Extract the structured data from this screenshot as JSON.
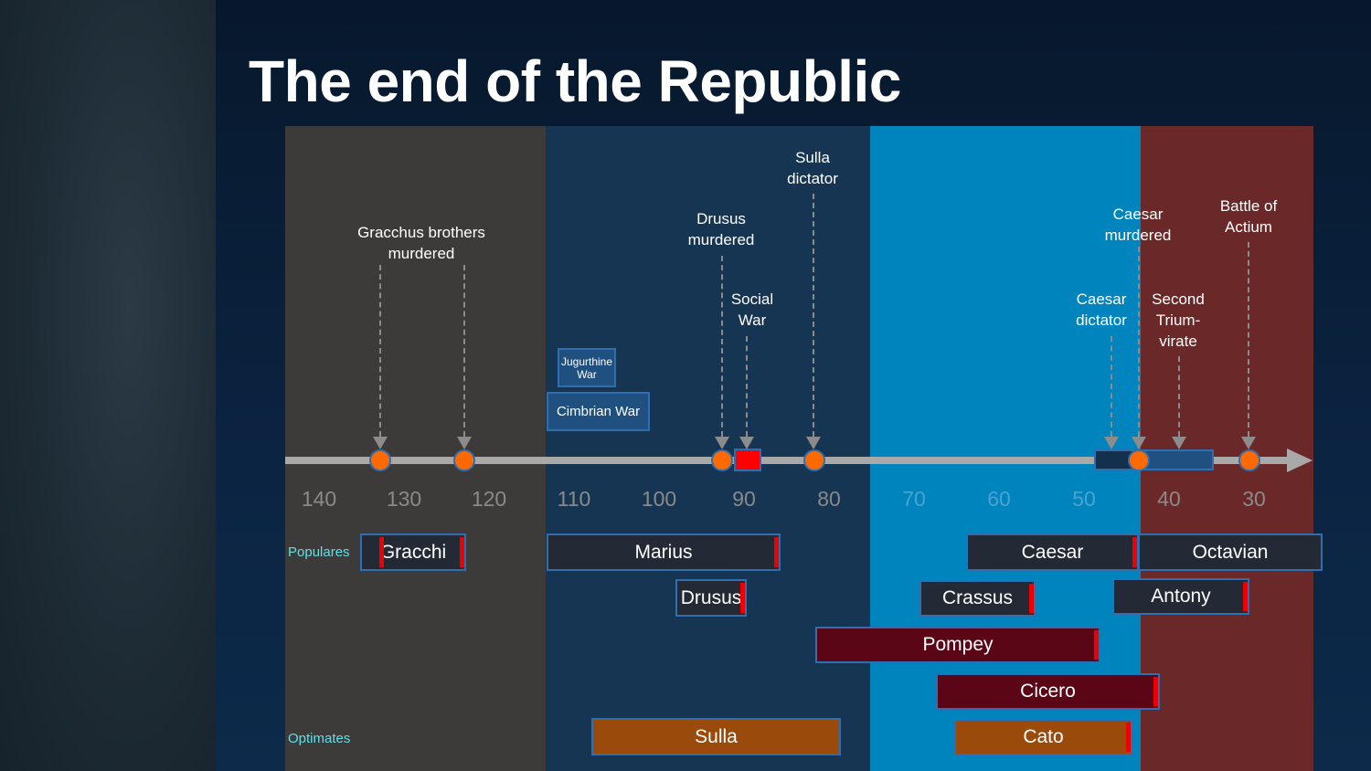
{
  "title": "The end of the Republic",
  "axis_ticks": [
    "140",
    "130",
    "120",
    "110",
    "100",
    "90",
    "80",
    "70",
    "60",
    "50",
    "40",
    "30"
  ],
  "events": [
    {
      "label": "Gracchus brothers murdered",
      "line1": "Gracchus brothers",
      "line2": "murdered"
    },
    {
      "line1": "Drusus",
      "line2": "murdered"
    },
    {
      "line1": "Social",
      "line2": "War"
    },
    {
      "line1": "Sulla",
      "line2": "dictator"
    },
    {
      "line1": "Caesar",
      "line2": "dictator"
    },
    {
      "line1": "Caesar",
      "line2": "murdered"
    },
    {
      "line1": "Second",
      "line2": "Trium-",
      "line3": "virate"
    },
    {
      "line1": "Battle of",
      "line2": "Actium"
    }
  ],
  "wars": {
    "jugurthine_1": "Jugurthine",
    "jugurthine_2": "War",
    "cimbrian": "Cimbrian War"
  },
  "factions": {
    "populares": "Populares",
    "optimates": "Optimates"
  },
  "people": {
    "gracchi": "Gracchi",
    "marius": "Marius",
    "drusus": "Drusus",
    "caesar": "Caesar",
    "octavian": "Octavian",
    "crassus": "Crassus",
    "antony": "Antony",
    "pompey": "Pompey",
    "cicero": "Cicero",
    "sulla": "Sulla",
    "cato": "Cato"
  },
  "colors": {
    "populares": "#232a35",
    "optimates": "#9a4a0a",
    "moderate": "#5a0616",
    "event": "#ff6a00",
    "death": "#ee0000"
  }
}
